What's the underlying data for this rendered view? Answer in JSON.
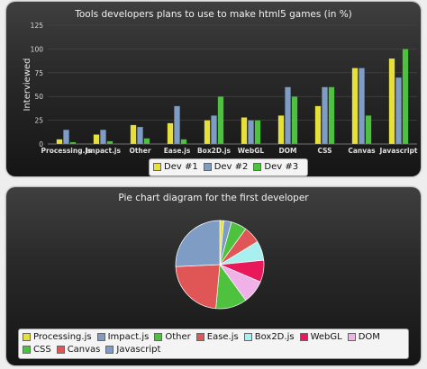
{
  "chart_data": [
    {
      "type": "bar",
      "title": "Tools developers plans to use to make html5 games (in %)",
      "ylabel": "Interviewed",
      "ylim": [
        0,
        125
      ],
      "yticks": [
        0,
        25,
        50,
        75,
        100,
        125
      ],
      "categories": [
        "Processing.js",
        "Impact.js",
        "Other",
        "Ease.js",
        "Box2D.js",
        "WebGL",
        "DOM",
        "CSS",
        "Canvas",
        "Javascript"
      ],
      "series": [
        {
          "name": "Dev #1",
          "color": "#e8e03a",
          "values": [
            5,
            10,
            20,
            22,
            25,
            28,
            30,
            40,
            80,
            90
          ]
        },
        {
          "name": "Dev #2",
          "color": "#7f9cc4",
          "values": [
            15,
            15,
            18,
            40,
            30,
            25,
            60,
            60,
            80,
            70
          ]
        },
        {
          "name": "Dev #3",
          "color": "#4ec23e",
          "values": [
            2,
            3,
            6,
            5,
            50,
            25,
            50,
            60,
            30,
            100
          ]
        }
      ],
      "legend": "bottom",
      "grid": true
    },
    {
      "type": "pie",
      "title": "Pie chart diagram for the first developer",
      "slices": [
        {
          "label": "Processing.js",
          "color": "#e8e03a",
          "value": 5
        },
        {
          "label": "Impact.js",
          "color": "#7f9cc4",
          "value": 10
        },
        {
          "label": "Other",
          "color": "#4ec23e",
          "value": 20
        },
        {
          "label": "Ease.js",
          "color": "#e05555",
          "value": 22
        },
        {
          "label": "Box2D.js",
          "color": "#a8f0f0",
          "value": 25
        },
        {
          "label": "WebGL",
          "color": "#e8185a",
          "value": 28
        },
        {
          "label": "DOM",
          "color": "#f0b0e8",
          "value": 30
        },
        {
          "label": "CSS",
          "color": "#4ec23e",
          "value": 40
        },
        {
          "label": "Canvas",
          "color": "#e05555",
          "value": 80
        },
        {
          "label": "Javascript",
          "color": "#7f9cc4",
          "value": 90
        }
      ],
      "legend": "bottom"
    }
  ]
}
